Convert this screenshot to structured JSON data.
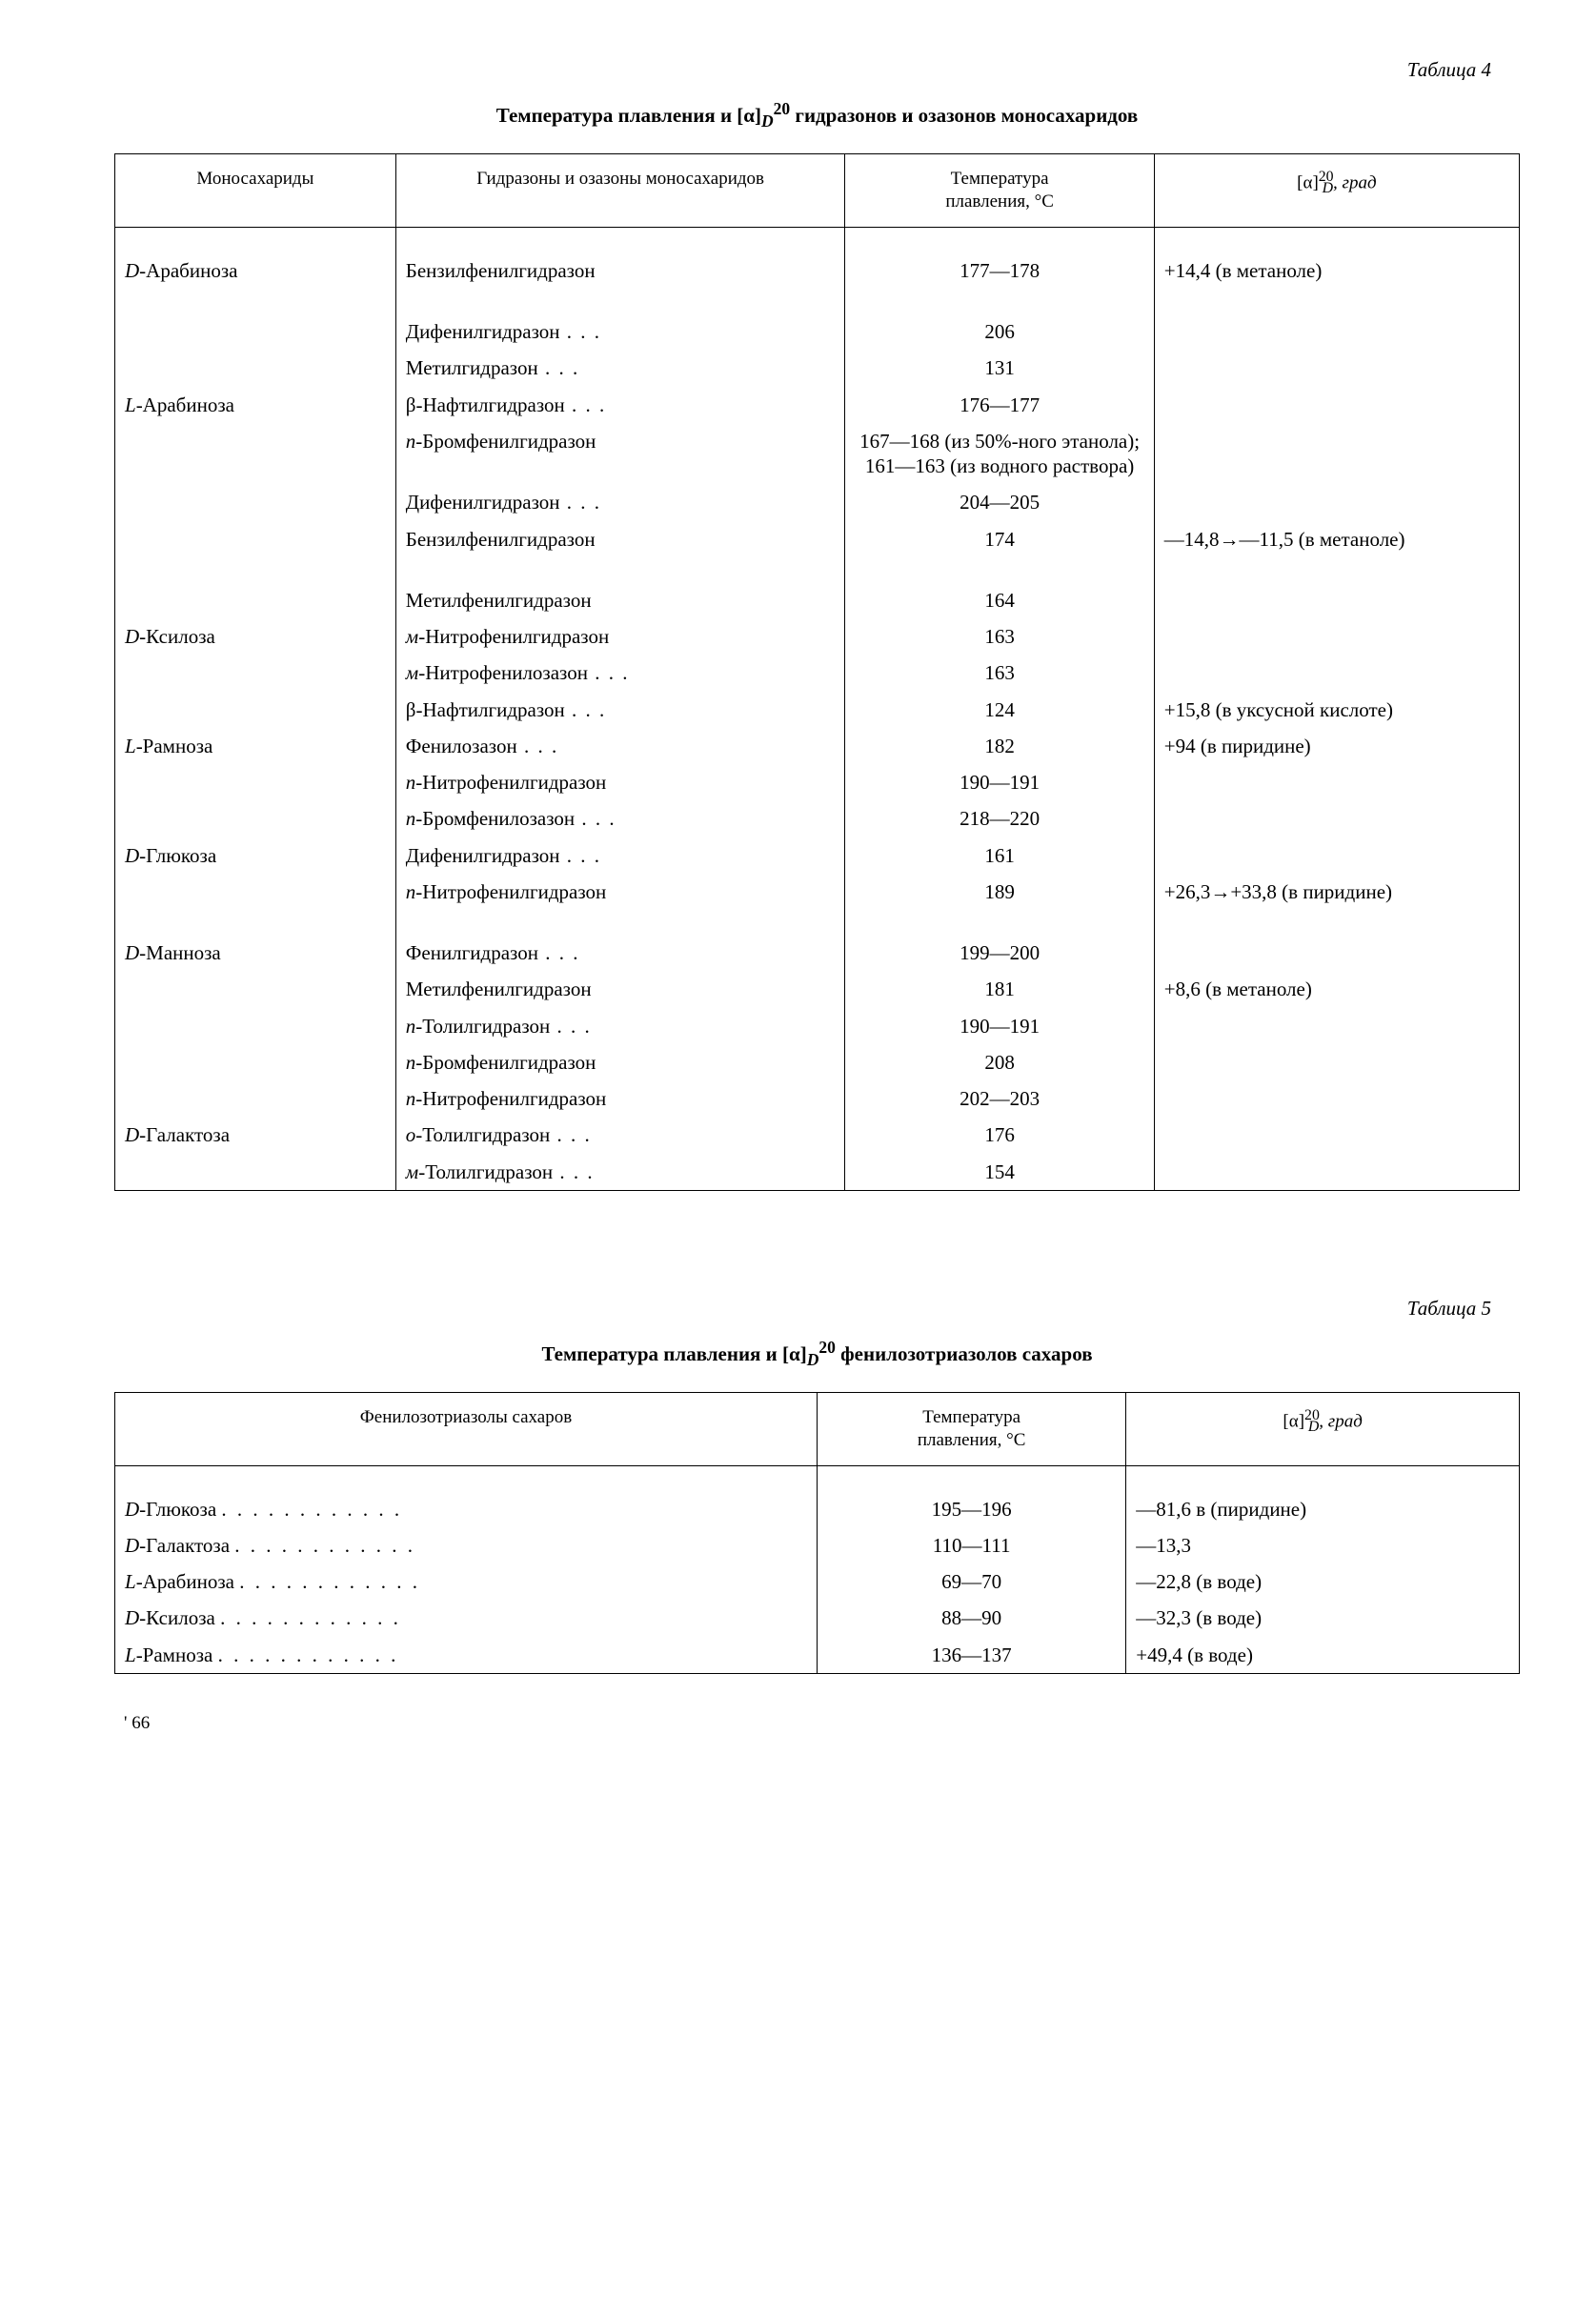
{
  "table4": {
    "label": "Таблица 4",
    "caption_prefix": "Температура плавления и [α]",
    "caption_sub": "D",
    "caption_sup": "20",
    "caption_suffix": " гидразонов и озазонов моносахаридов",
    "headers": {
      "c1": "Моносахариды",
      "c2": "Гидразоны и озазоны моносахаридов",
      "c3_l1": "Температура",
      "c3_l2": "плавления, °С",
      "c4_pre": "[α]",
      "c4_sup": "20",
      "c4_sub": "D",
      "c4_post": ", град"
    },
    "rows": [
      {
        "mono_pre": "D",
        "mono": "-Арабиноза",
        "deriv": "Бензилфенилгидразон",
        "temp": "177—178",
        "rot": "+14,4 (в метаноле)",
        "topgap": true
      },
      {
        "mono_pre": "",
        "mono": "",
        "deriv": "Дифенилгидразон",
        "deriv_dots": true,
        "temp": "206",
        "rot": "",
        "topgap": true
      },
      {
        "mono_pre": "",
        "mono": "",
        "deriv": "Метилгидразон",
        "deriv_dots": true,
        "temp": "131",
        "rot": ""
      },
      {
        "mono_pre": "L",
        "mono": "-Арабиноза",
        "deriv": "β-Нафтилгидразон",
        "deriv_dots": true,
        "temp": "176—177",
        "rot": ""
      },
      {
        "mono_pre": "",
        "mono": "",
        "deriv_pre": "п",
        "deriv": "-Бромфенилгидразон",
        "temp": "167—168 (из 50%-ного этанола); 161—163 (из водного раствора)",
        "rot": ""
      },
      {
        "mono_pre": "",
        "mono": "",
        "deriv": "Дифенилгидразон",
        "deriv_dots": true,
        "temp": "204—205",
        "rot": ""
      },
      {
        "mono_pre": "",
        "mono": "",
        "deriv": "Бензилфенилгидразон",
        "temp": "174",
        "rot": "—14,8→—11,5 (в метаноле)"
      },
      {
        "mono_pre": "",
        "mono": "",
        "deriv": "Метилфенилгидразон",
        "temp": "164",
        "rot": "",
        "topgap": true
      },
      {
        "mono_pre": "D",
        "mono": "-Ксилоза",
        "deriv_pre": "м",
        "deriv": "-Нитрофенилгидразон",
        "temp": "163",
        "rot": ""
      },
      {
        "mono_pre": "",
        "mono": "",
        "deriv_pre": "м",
        "deriv": "-Нитрофенилозазон",
        "deriv_dots": true,
        "temp": "163",
        "rot": ""
      },
      {
        "mono_pre": "",
        "mono": "",
        "deriv": "β-Нафтилгидразон",
        "deriv_dots": true,
        "temp": "124",
        "rot": "+15,8 (в уксусной кислоте)"
      },
      {
        "mono_pre": "L",
        "mono": "-Рамноза",
        "deriv": "Фенилозазон",
        "deriv_dots": true,
        "temp": "182",
        "rot": "+94 (в пиридине)"
      },
      {
        "mono_pre": "",
        "mono": "",
        "deriv_pre": "п",
        "deriv": "-Нитрофенилгидразон",
        "temp": "190—191",
        "rot": ""
      },
      {
        "mono_pre": "",
        "mono": "",
        "deriv_pre": "п",
        "deriv": "-Бромфенилозазон",
        "deriv_dots": true,
        "temp": "218—220",
        "rot": ""
      },
      {
        "mono_pre": "D",
        "mono": "-Глюкоза",
        "deriv": "Дифенилгидразон",
        "deriv_dots": true,
        "temp": "161",
        "rot": ""
      },
      {
        "mono_pre": "",
        "mono": "",
        "deriv_pre": "п",
        "deriv": "-Нитрофенилгидразон",
        "temp": "189",
        "rot": "+26,3→+33,8 (в пиридине)"
      },
      {
        "mono_pre": "D",
        "mono": "-Манноза",
        "deriv": "Фенилгидразон",
        "deriv_dots": true,
        "temp": "199—200",
        "rot": "",
        "topgap": true
      },
      {
        "mono_pre": "",
        "mono": "",
        "deriv": "Метилфенилгидразон",
        "temp": "181",
        "rot": "+8,6 (в метаноле)"
      },
      {
        "mono_pre": "",
        "mono": "",
        "deriv_pre": "п",
        "deriv": "-Толилгидразон",
        "deriv_dots": true,
        "temp": "190—191",
        "rot": ""
      },
      {
        "mono_pre": "",
        "mono": "",
        "deriv_pre": "п",
        "deriv": "-Бромфенилгидразон",
        "temp": "208",
        "rot": ""
      },
      {
        "mono_pre": "",
        "mono": "",
        "deriv_pre": "п",
        "deriv": "-Нитрофенилгидразон",
        "temp": "202—203",
        "rot": ""
      },
      {
        "mono_pre": "D",
        "mono": "-Галактоза",
        "deriv_pre": "о",
        "deriv": "-Толилгидразон",
        "deriv_dots": true,
        "temp": "176",
        "rot": ""
      },
      {
        "mono_pre": "",
        "mono": "",
        "deriv_pre": "м",
        "deriv": "-Толилгидразон",
        "deriv_dots": true,
        "temp": "154",
        "rot": ""
      }
    ]
  },
  "table5": {
    "label": "Таблица 5",
    "caption_prefix": "Температура плавления и [α]",
    "caption_sub": "D",
    "caption_sup": "20",
    "caption_suffix": " фенилозотриазолов сахаров",
    "headers": {
      "c1": "Фенилозотриазолы сахаров",
      "c2_l1": "Температура",
      "c2_l2": "плавления, °С",
      "c3_pre": "[α]",
      "c3_sup": "20",
      "c3_sub": "D",
      "c3_post": ", град"
    },
    "rows": [
      {
        "pre": "D",
        "name": "-Глюкоза",
        "temp": "195—196",
        "rot": "—81,6 в (пиридине)"
      },
      {
        "pre": "D",
        "name": "-Галактоза",
        "temp": "110—111",
        "rot": "—13,3"
      },
      {
        "pre": "L",
        "name": "-Арабиноза",
        "temp": "69—70",
        "rot": "—22,8 (в воде)"
      },
      {
        "pre": "D",
        "name": "-Ксилоза",
        "temp": "88—90",
        "rot": "—32,3 (в воде)"
      },
      {
        "pre": "L",
        "name": "-Рамноза",
        "temp": "136—137",
        "rot": "+49,4 (в воде)"
      }
    ]
  },
  "page_number": "66"
}
